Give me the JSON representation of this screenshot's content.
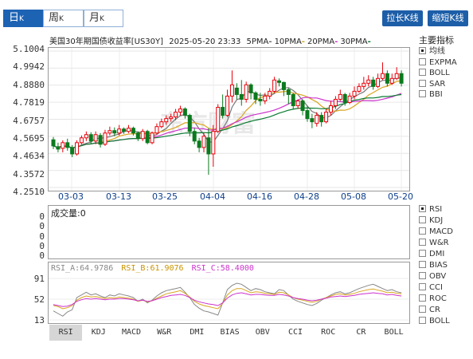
{
  "period_tabs": [
    {
      "label": "日",
      "suffix": "K"
    },
    {
      "label": "周",
      "suffix": "K"
    },
    {
      "label": "月",
      "suffix": "K"
    }
  ],
  "toolbar": {
    "stretch": "拉长K线",
    "shrink": "缩短K线"
  },
  "header": {
    "title": "美国30年期国债收益率[US30Y]",
    "datetime": "2025-05-20 23:33",
    "ma": [
      {
        "label": "5PMA",
        "color": "#666666"
      },
      {
        "label": "10PMA",
        "color": "#d9a520"
      },
      {
        "label": "20PMA",
        "color": "#cc33cc"
      },
      {
        "label": "30PMA",
        "color": "#0a7a32"
      }
    ],
    "dot_sep": "-"
  },
  "main_indicators_title": "主要指标",
  "main_indicators": [
    {
      "label": "均线",
      "checked": true
    },
    {
      "label": "EXPMA",
      "checked": false
    },
    {
      "label": "BOLL",
      "checked": false
    },
    {
      "label": "SAR",
      "checked": false
    },
    {
      "label": "BBI",
      "checked": false
    }
  ],
  "watermark": "东方财富",
  "price_axis": [
    "5.1004",
    "4.9942",
    "4.8880",
    "4.7819",
    "4.6757",
    "4.5695",
    "4.4634",
    "4.3572",
    "4.2510"
  ],
  "date_axis": [
    "03-03",
    "03-13",
    "03-25",
    "04-04",
    "04-16",
    "04-28",
    "05-08",
    "05-20"
  ],
  "volume": {
    "label": "成交量:",
    "value": "0",
    "axis": [
      "0",
      "0",
      "0",
      "0",
      "0"
    ]
  },
  "rsi": {
    "a": {
      "label": "RSI_A:",
      "value": "64.9786",
      "color": "#888888"
    },
    "b": {
      "label": "RSI_B:",
      "value": "61.9076",
      "color": "#d9a520"
    },
    "c": {
      "label": "RSI_C:",
      "value": "58.4000",
      "color": "#cc33cc"
    },
    "axis": [
      "91",
      "52",
      "13"
    ]
  },
  "sub_indicators": [
    {
      "label": "RSI",
      "checked": true
    },
    {
      "label": "KDJ",
      "checked": false
    },
    {
      "label": "MACD",
      "checked": false
    },
    {
      "label": "W&R",
      "checked": false
    },
    {
      "label": "DMI",
      "checked": false
    },
    {
      "label": "BIAS",
      "checked": false
    },
    {
      "label": "OBV",
      "checked": false
    },
    {
      "label": "CCI",
      "checked": false
    },
    {
      "label": "ROC",
      "checked": false
    },
    {
      "label": "CR",
      "checked": false
    },
    {
      "label": "BOLL",
      "checked": false
    }
  ],
  "bottom_tabs": [
    "RSI",
    "KDJ",
    "MACD",
    "W&R",
    "DMI",
    "BIAS",
    "OBV",
    "CCI",
    "ROC",
    "CR",
    "BOLL"
  ],
  "colors": {
    "up": "#e8000b",
    "down": "#0a7a1e",
    "accent": "#1d5ea8"
  },
  "candles": [
    [
      4.548,
      4.51,
      4.565,
      4.49
    ],
    [
      4.505,
      4.49,
      4.53,
      4.47
    ],
    [
      4.495,
      4.53,
      4.545,
      4.47
    ],
    [
      4.53,
      4.5,
      4.555,
      4.48
    ],
    [
      4.5,
      4.46,
      4.515,
      4.44
    ],
    [
      4.46,
      4.53,
      4.545,
      4.45
    ],
    [
      4.53,
      4.56,
      4.575,
      4.52
    ],
    [
      4.56,
      4.58,
      4.6,
      4.54
    ],
    [
      4.58,
      4.54,
      4.595,
      4.52
    ],
    [
      4.54,
      4.58,
      4.6,
      4.52
    ],
    [
      4.575,
      4.52,
      4.59,
      4.5
    ],
    [
      4.52,
      4.59,
      4.61,
      4.51
    ],
    [
      4.59,
      4.605,
      4.63,
      4.575
    ],
    [
      4.605,
      4.59,
      4.625,
      4.57
    ],
    [
      4.59,
      4.615,
      4.64,
      4.575
    ],
    [
      4.615,
      4.6,
      4.625,
      4.585
    ],
    [
      4.6,
      4.62,
      4.64,
      4.59
    ],
    [
      4.62,
      4.59,
      4.63,
      4.575
    ],
    [
      4.59,
      4.555,
      4.6,
      4.54
    ],
    [
      4.555,
      4.6,
      4.615,
      4.54
    ],
    [
      4.6,
      4.53,
      4.61,
      4.52
    ],
    [
      4.53,
      4.59,
      4.6,
      4.52
    ],
    [
      4.59,
      4.63,
      4.65,
      4.58
    ],
    [
      4.63,
      4.66,
      4.68,
      4.62
    ],
    [
      4.66,
      4.68,
      4.7,
      4.64
    ],
    [
      4.68,
      4.69,
      4.71,
      4.66
    ],
    [
      4.69,
      4.72,
      4.74,
      4.67
    ],
    [
      4.72,
      4.74,
      4.76,
      4.7
    ],
    [
      4.74,
      4.7,
      4.75,
      4.68
    ],
    [
      4.7,
      4.6,
      4.71,
      4.57
    ],
    [
      4.6,
      4.54,
      4.62,
      4.52
    ],
    [
      4.54,
      4.5,
      4.56,
      4.47
    ],
    [
      4.5,
      4.57,
      4.59,
      4.47
    ],
    [
      4.56,
      4.46,
      4.62,
      4.33
    ],
    [
      4.46,
      4.6,
      4.64,
      4.38
    ],
    [
      4.6,
      4.75,
      4.77,
      4.59
    ],
    [
      4.75,
      4.7,
      4.83,
      4.68
    ],
    [
      4.7,
      4.82,
      4.86,
      4.69
    ],
    [
      4.82,
      4.89,
      4.98,
      4.78
    ],
    [
      4.87,
      4.83,
      4.9,
      4.8
    ],
    [
      4.83,
      4.8,
      4.92,
      4.76
    ],
    [
      4.8,
      4.89,
      4.91,
      4.78
    ],
    [
      4.89,
      4.84,
      4.9,
      4.8
    ],
    [
      4.84,
      4.8,
      4.85,
      4.77
    ],
    [
      4.8,
      4.79,
      4.84,
      4.76
    ],
    [
      4.79,
      4.82,
      4.84,
      4.77
    ],
    [
      4.82,
      4.85,
      4.87,
      4.8
    ],
    [
      4.85,
      4.92,
      4.94,
      4.84
    ],
    [
      4.915,
      4.905,
      4.93,
      4.88
    ],
    [
      4.905,
      4.86,
      4.91,
      4.82
    ],
    [
      4.86,
      4.83,
      4.87,
      4.77
    ],
    [
      4.83,
      4.76,
      4.84,
      4.74
    ],
    [
      4.76,
      4.79,
      4.8,
      4.74
    ],
    [
      4.79,
      4.73,
      4.8,
      4.7
    ],
    [
      4.73,
      4.68,
      4.76,
      4.66
    ],
    [
      4.68,
      4.66,
      4.71,
      4.62
    ],
    [
      4.65,
      4.7,
      4.72,
      4.63
    ],
    [
      4.7,
      4.66,
      4.72,
      4.63
    ],
    [
      4.66,
      4.72,
      4.74,
      4.65
    ],
    [
      4.72,
      4.76,
      4.79,
      4.7
    ],
    [
      4.76,
      4.8,
      4.82,
      4.74
    ],
    [
      4.8,
      4.83,
      4.86,
      4.79
    ],
    [
      4.83,
      4.78,
      4.84,
      4.76
    ],
    [
      4.78,
      4.82,
      4.84,
      4.77
    ],
    [
      4.82,
      4.85,
      4.88,
      4.8
    ],
    [
      4.85,
      4.88,
      4.9,
      4.84
    ],
    [
      4.88,
      4.9,
      4.94,
      4.86
    ],
    [
      4.9,
      4.92,
      4.95,
      4.88
    ],
    [
      4.92,
      4.88,
      4.94,
      4.86
    ],
    [
      4.88,
      4.93,
      4.96,
      4.87
    ],
    [
      4.93,
      4.96,
      5.03,
      4.92
    ],
    [
      4.96,
      4.9,
      4.98,
      4.88
    ],
    [
      4.9,
      4.93,
      4.96,
      4.89
    ],
    [
      4.93,
      4.96,
      5.0,
      4.92
    ],
    [
      4.96,
      4.9,
      4.98,
      4.88
    ]
  ],
  "rsi_series": {
    "a": [
      30,
      25,
      20,
      28,
      32,
      55,
      60,
      65,
      60,
      62,
      58,
      55,
      60,
      58,
      62,
      60,
      58,
      55,
      48,
      52,
      45,
      50,
      58,
      64,
      68,
      70,
      72,
      74,
      65,
      55,
      42,
      35,
      30,
      28,
      25,
      22,
      45,
      70,
      78,
      82,
      80,
      74,
      68,
      72,
      70,
      66,
      64,
      62,
      70,
      68,
      60,
      52,
      48,
      45,
      42,
      40,
      44,
      50,
      55,
      60,
      64,
      66,
      62,
      64,
      68,
      72,
      75,
      78,
      80,
      76,
      72,
      68,
      70,
      66,
      64
    ],
    "b": [
      40,
      38,
      34,
      36,
      40,
      50,
      55,
      58,
      56,
      57,
      55,
      53,
      55,
      54,
      56,
      55,
      54,
      52,
      48,
      50,
      47,
      49,
      54,
      58,
      62,
      64,
      66,
      68,
      63,
      56,
      48,
      43,
      40,
      38,
      36,
      34,
      44,
      60,
      68,
      72,
      72,
      68,
      64,
      66,
      65,
      63,
      62,
      61,
      65,
      64,
      60,
      55,
      52,
      50,
      48,
      46,
      48,
      52,
      55,
      58,
      61,
      62,
      60,
      61,
      63,
      66,
      68,
      70,
      71,
      69,
      67,
      64,
      65,
      63,
      62
    ],
    "c": [
      42,
      40,
      38,
      39,
      42,
      48,
      51,
      53,
      52,
      53,
      52,
      51,
      52,
      52,
      53,
      53,
      52,
      51,
      49,
      50,
      48,
      49,
      52,
      55,
      57,
      59,
      60,
      61,
      59,
      55,
      50,
      47,
      45,
      43,
      42,
      40,
      45,
      54,
      60,
      63,
      64,
      62,
      60,
      61,
      61,
      60,
      59,
      59,
      61,
      60,
      58,
      55,
      53,
      52,
      50,
      49,
      50,
      52,
      54,
      56,
      57,
      58,
      57,
      58,
      59,
      61,
      62,
      63,
      64,
      63,
      62,
      60,
      61,
      59,
      58
    ]
  }
}
